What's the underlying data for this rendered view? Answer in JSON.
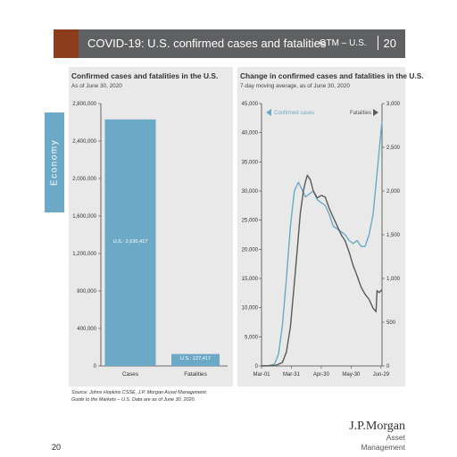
{
  "header": {
    "title": "COVID-19: U.S. confirmed cases and fatalities",
    "gtm": "GTM – U.S.",
    "page": "20"
  },
  "side_tab": {
    "label": "Economy"
  },
  "page_number": "20",
  "source": {
    "line1": "Source: Johns Hopkins CSSE, J.P. Morgan Asset Management.",
    "line2": "Guide to the Markets – U.S. Data are as of June 30, 2020."
  },
  "logo": {
    "line1": "J.P.Morgan",
    "line2": "Asset Management"
  },
  "colors": {
    "accent_blue": "#6ba9c7",
    "dark_line": "#5a5a5a",
    "header_gray": "#5f6062",
    "header_tab": "#8b3d1e"
  },
  "chart_data": [
    {
      "type": "bar",
      "title": "Confirmed cases and fatalities in the U.S.",
      "subtitle": "As of June 30, 2020",
      "categories": [
        "Cases",
        "Fatalities"
      ],
      "values": [
        2630417,
        127417
      ],
      "data_labels": [
        "U.S.: 2,630,417",
        "U.S.: 127,417"
      ],
      "ylim": [
        0,
        2800000
      ],
      "yticks": [
        0,
        400000,
        800000,
        1200000,
        1600000,
        2000000,
        2400000,
        2800000
      ],
      "ytick_labels": [
        "0",
        "400,000",
        "800,000",
        "1,200,000",
        "1,600,000",
        "2,000,000",
        "2,400,000",
        "2,800,000"
      ],
      "color": "#6ba9c7",
      "grid": false
    },
    {
      "type": "line",
      "title": "Change in confirmed cases and fatalities in the U.S.",
      "subtitle": "7-day moving average, as of June 30, 2020",
      "x_start": "2020-03-01",
      "x_end": "2020-06-30",
      "xticks": [
        "Mar-01",
        "Mar-31",
        "Apr-30",
        "May-30",
        "Jun-29"
      ],
      "y_left": {
        "lim": [
          0,
          45000
        ],
        "ticks": [
          0,
          5000,
          10000,
          15000,
          20000,
          25000,
          30000,
          35000,
          40000,
          45000
        ],
        "tick_labels": [
          "0",
          "5,000",
          "10,000",
          "15,000",
          "20,000",
          "25,000",
          "30,000",
          "35,000",
          "40,000",
          "45,000"
        ]
      },
      "y_right": {
        "lim": [
          0,
          3000
        ],
        "ticks": [
          0,
          500,
          1000,
          1500,
          2000,
          2500,
          3000
        ],
        "tick_labels": [
          "0",
          "500",
          "1,000",
          "1,500",
          "2,000",
          "2,500",
          "3,000"
        ]
      },
      "legend": {
        "left": "Confirmed cases",
        "right": "Fatalities",
        "placement": "top"
      },
      "grid": false,
      "series": [
        {
          "name": "Confirmed cases",
          "axis": "left",
          "color": "#6ba9c7",
          "x": [
            "2020-03-01",
            "2020-03-08",
            "2020-03-14",
            "2020-03-18",
            "2020-03-22",
            "2020-03-26",
            "2020-03-30",
            "2020-04-03",
            "2020-04-07",
            "2020-04-10",
            "2020-04-14",
            "2020-04-18",
            "2020-04-22",
            "2020-04-26",
            "2020-04-30",
            "2020-05-04",
            "2020-05-08",
            "2020-05-12",
            "2020-05-16",
            "2020-05-20",
            "2020-05-24",
            "2020-05-28",
            "2020-06-01",
            "2020-06-05",
            "2020-06-09",
            "2020-06-13",
            "2020-06-17",
            "2020-06-21",
            "2020-06-25",
            "2020-06-28",
            "2020-06-30"
          ],
          "y": [
            0,
            50,
            300,
            2000,
            7000,
            15000,
            24000,
            30000,
            31500,
            30500,
            29000,
            29500,
            30000,
            28500,
            28000,
            27500,
            26000,
            24000,
            23500,
            23000,
            22500,
            21500,
            21000,
            21500,
            20500,
            20500,
            22500,
            26000,
            33000,
            38500,
            42000
          ]
        },
        {
          "name": "Fatalities",
          "axis": "right",
          "color": "#5a5a5a",
          "x": [
            "2020-03-01",
            "2020-03-15",
            "2020-03-22",
            "2020-03-26",
            "2020-03-30",
            "2020-04-03",
            "2020-04-06",
            "2020-04-09",
            "2020-04-12",
            "2020-04-14",
            "2020-04-16",
            "2020-04-19",
            "2020-04-22",
            "2020-04-26",
            "2020-04-30",
            "2020-05-04",
            "2020-05-08",
            "2020-05-12",
            "2020-05-16",
            "2020-05-20",
            "2020-05-24",
            "2020-05-28",
            "2020-06-01",
            "2020-06-05",
            "2020-06-09",
            "2020-06-13",
            "2020-06-17",
            "2020-06-21",
            "2020-06-24",
            "2020-06-25",
            "2020-06-27",
            "2020-06-30"
          ],
          "y": [
            0,
            5,
            40,
            160,
            450,
            950,
            1350,
            1750,
            2000,
            2100,
            2180,
            2130,
            2000,
            1920,
            1950,
            1930,
            1800,
            1700,
            1600,
            1500,
            1430,
            1300,
            1150,
            1030,
            900,
            820,
            760,
            660,
            620,
            860,
            840,
            870
          ]
        }
      ]
    }
  ]
}
